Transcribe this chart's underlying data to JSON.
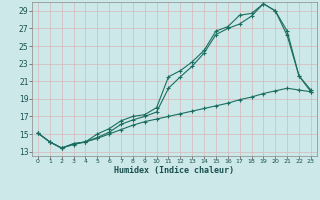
{
  "xlabel": "Humidex (Indice chaleur)",
  "bg_color": "#cce8e8",
  "grid_color": "#d8b8b8",
  "line_color": "#1a6e60",
  "xlim": [
    -0.5,
    23.5
  ],
  "ylim": [
    12.5,
    30.0
  ],
  "xticks": [
    0,
    1,
    2,
    3,
    4,
    5,
    6,
    7,
    8,
    9,
    10,
    11,
    12,
    13,
    14,
    15,
    16,
    17,
    18,
    19,
    20,
    21,
    22,
    23
  ],
  "yticks": [
    13,
    15,
    17,
    19,
    21,
    23,
    25,
    27,
    29
  ],
  "curve1_x": [
    0,
    1,
    2,
    3,
    4,
    5,
    6,
    7,
    8,
    9,
    10,
    11,
    12,
    13,
    14,
    15,
    16,
    17,
    18,
    19,
    20,
    21,
    22,
    23
  ],
  "curve1_y": [
    15.1,
    14.1,
    13.4,
    13.9,
    14.1,
    15.0,
    15.6,
    16.5,
    17.0,
    17.2,
    18.0,
    21.5,
    22.2,
    23.2,
    24.5,
    26.7,
    27.2,
    28.5,
    28.7,
    29.8,
    29.0,
    26.7,
    21.6,
    19.8
  ],
  "curve2_x": [
    0,
    1,
    2,
    3,
    4,
    5,
    6,
    7,
    8,
    9,
    10,
    11,
    12,
    13,
    14,
    15,
    16,
    17,
    18,
    19,
    20,
    21,
    22,
    23
  ],
  "curve2_y": [
    15.1,
    14.1,
    13.4,
    13.9,
    14.1,
    14.6,
    15.2,
    16.1,
    16.6,
    17.0,
    17.5,
    20.2,
    21.5,
    22.7,
    24.2,
    26.3,
    27.0,
    27.5,
    28.4,
    29.8,
    29.0,
    26.2,
    21.6,
    20.0
  ],
  "curve3_x": [
    0,
    1,
    2,
    3,
    4,
    5,
    6,
    7,
    8,
    9,
    10,
    11,
    12,
    13,
    14,
    15,
    16,
    17,
    18,
    19,
    20,
    21,
    22,
    23
  ],
  "curve3_y": [
    15.1,
    14.1,
    13.4,
    13.8,
    14.1,
    14.5,
    15.0,
    15.5,
    16.0,
    16.4,
    16.7,
    17.0,
    17.3,
    17.6,
    17.9,
    18.2,
    18.5,
    18.9,
    19.2,
    19.6,
    19.9,
    20.2,
    20.0,
    19.8
  ]
}
